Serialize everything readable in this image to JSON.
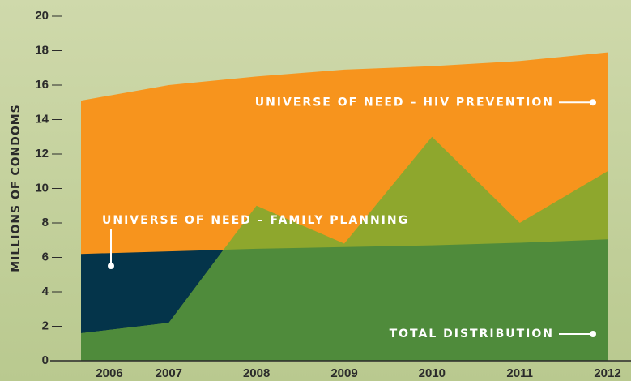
{
  "chart_data": {
    "type": "area",
    "y_label": "MILLIONS OF CONDOMS",
    "categories": [
      "2006",
      "2007",
      "2008",
      "2009",
      "2010",
      "2011",
      "2012"
    ],
    "ylim": [
      0,
      20
    ],
    "yticks": [
      0,
      2,
      4,
      6,
      8,
      10,
      12,
      14,
      16,
      18,
      20
    ],
    "series": [
      {
        "name": "UNIVERSE OF NEED – HIV PREVENTION",
        "color": "#f7941d",
        "values": [
          15.1,
          16.0,
          16.5,
          16.9,
          17.1,
          17.4,
          17.9
        ]
      },
      {
        "name": "UNIVERSE OF NEED – FAMILY PLANNING",
        "color": "#04344a",
        "values": [
          6.2,
          6.35,
          6.5,
          6.6,
          6.7,
          6.85,
          7.05
        ]
      },
      {
        "name": "TOTAL DISTRIBUTION",
        "color": "#8ea72d",
        "values": [
          1.6,
          2.2,
          9.0,
          6.8,
          13.0,
          8.0,
          11.0
        ]
      }
    ],
    "overlap_color": "#4f8b3b"
  }
}
